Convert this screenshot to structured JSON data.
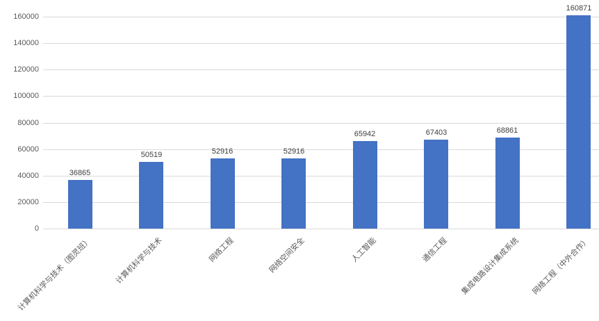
{
  "chart_data": {
    "type": "bar",
    "title": "",
    "xlabel": "",
    "ylabel": "",
    "categories": [
      "计算机科学与技术（图灵班）",
      "计算机科学与技术",
      "网络工程",
      "网络空间安全",
      "人工智能",
      "通信工程",
      "集成电路设计集成系统",
      "网络工程（中外合作）"
    ],
    "values": [
      36865,
      50519,
      52916,
      52916,
      65942,
      67403,
      68861,
      160871
    ],
    "value_labels": [
      "36865",
      "50519",
      "52916",
      "52916",
      "65942",
      "67403",
      "68861",
      "160871"
    ],
    "yticks": [
      0,
      20000,
      40000,
      60000,
      80000,
      100000,
      120000,
      140000,
      160000
    ],
    "ytick_labels": [
      "0",
      "20000",
      "40000",
      "60000",
      "80000",
      "100000",
      "120000",
      "140000",
      "160000"
    ],
    "ylim": [
      0,
      160000
    ],
    "grid": true,
    "legend_position": "none",
    "colors": {
      "bar": "#4472C4",
      "gridline": "#D9D9D9",
      "axis_text": "#595959",
      "value_text": "#404040",
      "background": "#FFFFFF"
    }
  }
}
